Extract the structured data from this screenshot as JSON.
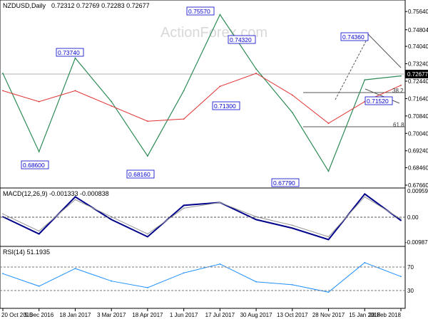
{
  "header": {
    "symbol": "NZDUSD,Daily",
    "ohlc": "0.72312 0.72769 0.72283 0.72677"
  },
  "watermark": "ActionForex.com",
  "price_axis": {
    "ticks": [
      "0.75640",
      "0.74804",
      "0.74040",
      "0.73240",
      "0.72440",
      "0.71640",
      "0.70840",
      "0.70040",
      "0.69240",
      "0.68460",
      "0.67660"
    ],
    "current_price": "0.72677"
  },
  "macd_panel": {
    "label": "MACD(12,26,9) -0.001333 -0.000838",
    "ticks": [
      "0.009591",
      "0.00",
      "-0.009879"
    ]
  },
  "rsi_panel": {
    "label": "RSI(14) 51.1935",
    "ticks": [
      "70",
      "30"
    ]
  },
  "x_axis": {
    "labels": [
      "20 Oct 2016",
      "5 Dec 2016",
      "18 Jan 2017",
      "3 Mar 2017",
      "18 Apr 2017",
      "1 Jun 2017",
      "17 Jul 2017",
      "30 Aug 2017",
      "13 Oct 2017",
      "28 Nov 2017",
      "15 Jan 2018",
      "28 Feb 2018"
    ]
  },
  "chart_data": [
    {
      "type": "line",
      "panel": "price",
      "ylim": [
        0.6766,
        0.7604
      ],
      "x": [
        "20 Oct 2016",
        "5 Dec 2016",
        "18 Jan 2017",
        "3 Mar 2017",
        "18 Apr 2017",
        "1 Jun 2017",
        "17 Jul 2017",
        "30 Aug 2017",
        "13 Oct 2017",
        "28 Nov 2017",
        "15 Jan 2018",
        "28 Feb 2018"
      ],
      "series": [
        {
          "name": "",
          "color": "#2e8b57",
          "values": [
            0.728,
            0.692,
            0.735,
            0.715,
            0.69,
            0.72,
            0.755,
            0.73,
            0.71,
            0.683,
            0.725,
            0.7268
          ]
        },
        {
          "name": "",
          "color": "#e03030",
          "values": [
            0.72,
            0.715,
            0.72,
            0.713,
            0.706,
            0.707,
            0.722,
            0.728,
            0.718,
            0.705,
            0.715,
            0.7225
          ]
        }
      ],
      "annotations": [
        {
          "label": "0.74360",
          "value": 0.7436
        },
        {
          "label": "0.68600",
          "value": 0.686
        },
        {
          "label": "0.73740",
          "value": 0.7374
        },
        {
          "label": "0.68160",
          "value": 0.6816
        },
        {
          "label": "0.75570",
          "value": 0.7557
        },
        {
          "label": "0.71300",
          "value": 0.713
        },
        {
          "label": "0.74320",
          "value": 0.7432
        },
        {
          "label": "0.67790",
          "value": 0.6779
        },
        {
          "label": "0.71520",
          "value": 0.7152
        },
        {
          "label": "38.2",
          "value": 0.7195
        },
        {
          "label": "61.8",
          "value": 0.7035
        }
      ]
    },
    {
      "type": "line",
      "panel": "macd",
      "ylim": [
        -0.009879,
        0.009591
      ],
      "series": [
        {
          "name": "",
          "color": "#00008b",
          "values": [
            0.0,
            -0.006,
            0.007,
            -0.001,
            -0.007,
            0.004,
            0.005,
            -0.001,
            -0.004,
            -0.008,
            0.008,
            -0.0013
          ]
        },
        {
          "name": "",
          "color": "#999999",
          "values": [
            0.001,
            -0.005,
            0.006,
            0.0,
            -0.006,
            0.003,
            0.005,
            0.0,
            -0.003,
            -0.007,
            0.007,
            -0.0008
          ]
        }
      ]
    },
    {
      "type": "line",
      "panel": "rsi",
      "ylim": [
        10,
        90
      ],
      "series": [
        {
          "name": "",
          "color": "#1e90ff",
          "values": [
            55,
            38,
            62,
            45,
            36,
            56,
            68,
            44,
            40,
            30,
            70,
            51.19
          ]
        }
      ]
    }
  ]
}
